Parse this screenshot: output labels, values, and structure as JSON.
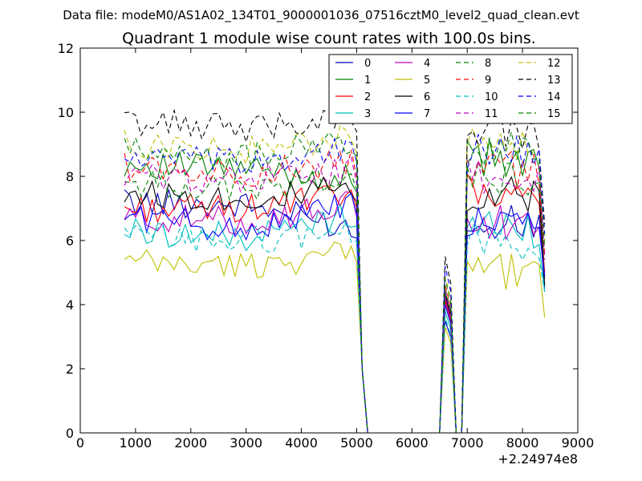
{
  "figure": {
    "suptitle": "Data file: modeM0/AS1A02_134T01_9000001036_07516cztM0_level2_quad_clean.evt",
    "title": "Quadrant 1 module wise count rates with 100.0s bins.",
    "x_offset_label": "+2.24974e8"
  },
  "chart_data": {
    "type": "line",
    "title": "Quadrant 1 module wise count rates with 100.0s bins.",
    "xlabel": "",
    "ylabel": "",
    "xlim": [
      0,
      9000
    ],
    "ylim": [
      0,
      12
    ],
    "x_offset": "+2.24974e8",
    "xticks": [
      "0",
      "1000",
      "2000",
      "3000",
      "4000",
      "5000",
      "6000",
      "7000",
      "8000",
      "9000"
    ],
    "yticks": [
      "0",
      "2",
      "4",
      "6",
      "8",
      "10",
      "12"
    ],
    "grid": false,
    "legend_placement": "top-right",
    "legend_columns": 4,
    "segments": [
      {
        "x_start": 800,
        "x_end": 4900,
        "step": 100
      },
      {
        "x_start": 5000,
        "x_end": 6500,
        "step": 100
      },
      {
        "x_start": 6500,
        "x_end": 6800,
        "step": 100
      },
      {
        "x_start": 6800,
        "x_end": 6900,
        "step": 100
      },
      {
        "x_start": 6900,
        "x_end": 8400,
        "step": 100
      }
    ],
    "series": [
      {
        "name": "0",
        "color": "#0000bf",
        "style": "solid",
        "levels": [
          7.2,
          7.1,
          6.4,
          3.5,
          6.6,
          4.5
        ]
      },
      {
        "name": "1",
        "color": "#008000",
        "style": "solid",
        "levels": [
          8.4,
          8.2,
          7.9,
          4.4,
          8.6,
          4.8
        ]
      },
      {
        "name": "2",
        "color": "#ff0000",
        "style": "solid",
        "levels": [
          7.0,
          7.0,
          7.4,
          4.1,
          7.5,
          5.0
        ]
      },
      {
        "name": "3",
        "color": "#00bfbf",
        "style": "solid",
        "levels": [
          6.3,
          6.1,
          6.8,
          3.8,
          6.4,
          4.4
        ]
      },
      {
        "name": "4",
        "color": "#bf00bf",
        "style": "solid",
        "levels": [
          6.7,
          6.6,
          7.1,
          4.2,
          6.7,
          4.8
        ]
      },
      {
        "name": "5",
        "color": "#bfbf00",
        "style": "solid",
        "levels": [
          5.3,
          5.2,
          5.6,
          3.3,
          5.1,
          3.6
        ]
      },
      {
        "name": "6",
        "color": "#000000",
        "style": "solid",
        "levels": [
          7.5,
          7.3,
          7.6,
          4.3,
          7.5,
          4.6
        ]
      },
      {
        "name": "7",
        "color": "#0000ff",
        "style": "solid",
        "levels": [
          6.8,
          6.3,
          7.2,
          4.0,
          6.6,
          4.9
        ]
      },
      {
        "name": "8",
        "color": "#008000",
        "style": "dashed",
        "levels": [
          7.8,
          7.6,
          8.0,
          4.5,
          8.0,
          5.5
        ]
      },
      {
        "name": "9",
        "color": "#ff0000",
        "style": "dashed",
        "levels": [
          8.3,
          8.1,
          8.4,
          4.6,
          8.3,
          5.6
        ]
      },
      {
        "name": "10",
        "color": "#00bfbf",
        "style": "dashed",
        "levels": [
          6.1,
          6.0,
          6.3,
          3.6,
          6.0,
          4.4
        ]
      },
      {
        "name": "11",
        "color": "#bf00bf",
        "style": "dashed",
        "levels": [
          8.0,
          7.9,
          8.2,
          4.4,
          8.0,
          5.4
        ]
      },
      {
        "name": "12",
        "color": "#bfbf00",
        "style": "dashed",
        "levels": [
          9.0,
          8.8,
          9.2,
          4.9,
          9.1,
          6.0
        ]
      },
      {
        "name": "13",
        "color": "#000000",
        "style": "dashed",
        "levels": [
          9.7,
          9.5,
          9.9,
          5.5,
          9.6,
          6.5
        ]
      },
      {
        "name": "14",
        "color": "#0000ff",
        "style": "dashed",
        "levels": [
          8.6,
          8.4,
          8.9,
          5.2,
          8.8,
          6.2
        ]
      },
      {
        "name": "15",
        "color": "#008000",
        "style": "dashed",
        "levels": [
          8.8,
          8.6,
          9.1,
          4.8,
          8.9,
          5.8
        ]
      }
    ],
    "level_points_x": [
      800,
      3000,
      4900,
      6600,
      7500,
      8400
    ]
  }
}
